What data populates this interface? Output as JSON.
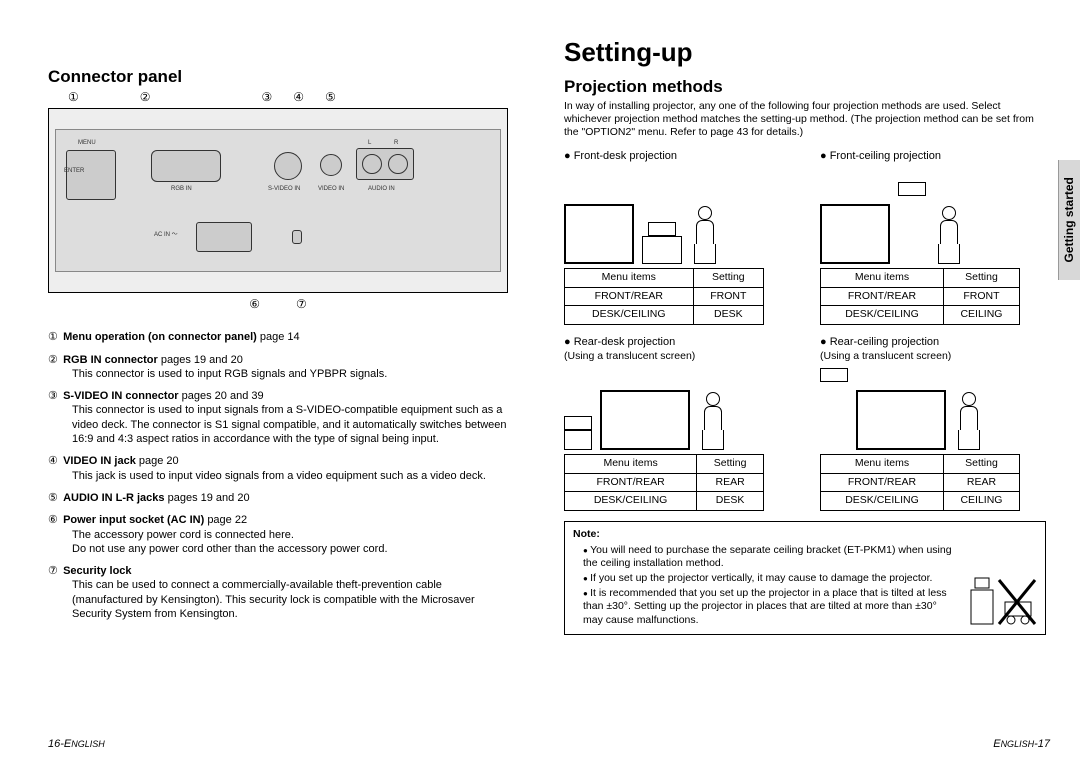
{
  "leftPage": {
    "heading": "Connector panel",
    "topNumbers": [
      "①",
      "②",
      "③",
      "④",
      "⑤"
    ],
    "bottomNumbers": [
      "⑥",
      "⑦"
    ],
    "panelLabels": {
      "menu": "MENU",
      "enter": "ENTER",
      "rgb": "RGB IN",
      "svideo": "S-VIDEO IN",
      "video": "VIDEO IN",
      "audio": "AUDIO IN",
      "l": "L",
      "r": "R",
      "acin": "AC IN ～"
    },
    "items": [
      {
        "num": "①",
        "title": "Menu operation (on connector panel)",
        "ref": "page 14",
        "desc": ""
      },
      {
        "num": "②",
        "title": "RGB IN connector",
        "ref": "pages 19 and 20",
        "desc": "This connector is used to input RGB signals and YPBPR signals."
      },
      {
        "num": "③",
        "title": "S-VIDEO IN connector",
        "ref": "pages 20 and 39",
        "desc": "This connector is used to input signals from a S-VIDEO-compatible equipment such as a video deck. The connector is S1 signal compatible, and it automatically switches between 16:9 and 4:3 aspect ratios in accordance with the type of signal being input."
      },
      {
        "num": "④",
        "title": "VIDEO IN jack",
        "ref": "page 20",
        "desc": "This jack is used to input video signals from a video equipment such as a video deck."
      },
      {
        "num": "⑤",
        "title": "AUDIO IN L-R jacks",
        "ref": "pages 19 and 20",
        "desc": ""
      },
      {
        "num": "⑥",
        "title": "Power input socket (AC IN)",
        "ref": "page 22",
        "desc": "The accessory power cord is connected here.\nDo not use any power cord other than the accessory power cord."
      },
      {
        "num": "⑦",
        "title": "Security lock",
        "ref": "",
        "desc": "This can be used to connect a commercially-available theft-prevention cable (manufactured by Kensington). This security lock is compatible with the Microsaver Security System from Kensington."
      }
    ],
    "footer": "16-ENGLISH"
  },
  "rightPage": {
    "mainHeading": "Setting-up",
    "subHeading": "Projection methods",
    "intro": "In way of installing projector, any one of the following four projection methods are used. Select whichever projection method matches the setting-up method. (The projection method can be set from the \"OPTION2\" menu. Refer to page 43 for details.)",
    "sideTab": "Getting started",
    "tableHeaders": {
      "col1": "Menu items",
      "col2": "Setting"
    },
    "tableRows": {
      "r1": "FRONT/REAR",
      "r2": "DESK/CEILING"
    },
    "blocks": [
      {
        "title": "● Front-desk projection",
        "sub": "",
        "s1": "FRONT",
        "s2": "DESK"
      },
      {
        "title": "● Front-ceiling projection",
        "sub": "",
        "s1": "FRONT",
        "s2": "CEILING"
      },
      {
        "title": "● Rear-desk projection",
        "sub": "(Using a translucent screen)",
        "s1": "REAR",
        "s2": "DESK"
      },
      {
        "title": "● Rear-ceiling projection",
        "sub": "(Using a translucent screen)",
        "s1": "REAR",
        "s2": "CEILING"
      }
    ],
    "note": {
      "title": "Note:",
      "bullets": [
        "You will need to purchase the separate ceiling bracket (ET-PKM1) when using the ceiling installation method.",
        "If you set up the projector vertically, it may cause to damage the projector.",
        "It is recommended that you set up the projector in a place that is tilted at less than ±30°. Setting up the projector in places that are tilted at more than ±30° may cause malfunctions."
      ]
    },
    "footer": "ENGLISH-17"
  }
}
